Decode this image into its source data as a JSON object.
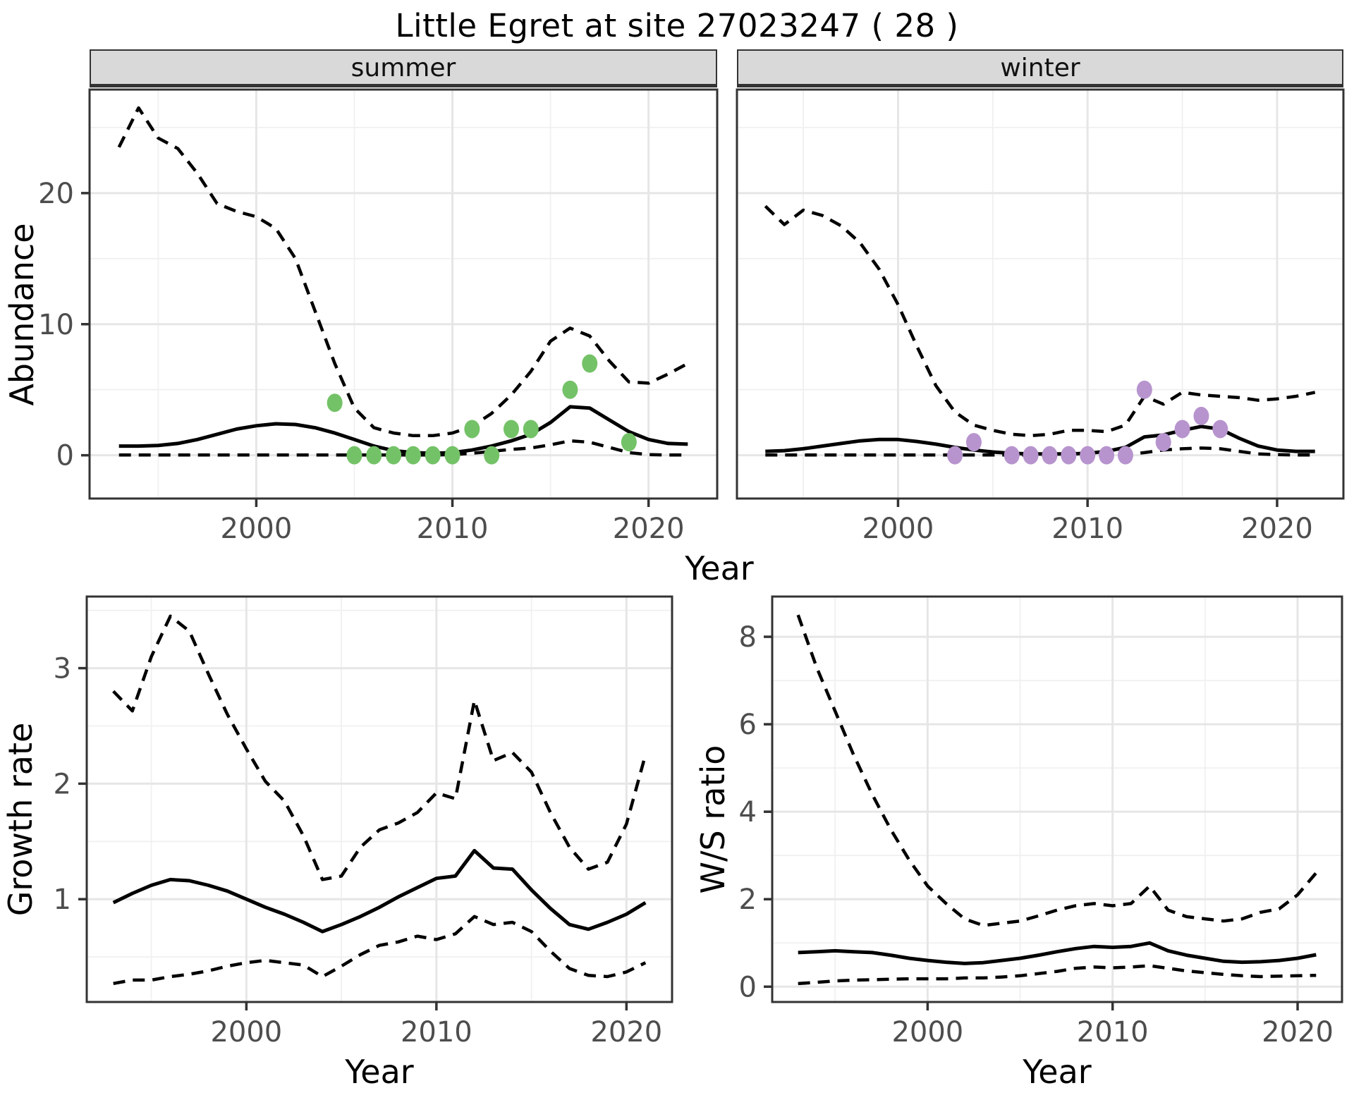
{
  "title": "Little Egret at site 27023247 ( 28 )",
  "axis_labels": {
    "x": "Year",
    "y_abundance": "Abundance",
    "y_growth": "Growth rate",
    "y_ws": "W/S ratio"
  },
  "facet_labels": {
    "summer": "summer",
    "winter": "winter"
  },
  "colors": {
    "summer_points": "#74c267",
    "winter_points": "#b794ce",
    "line": "#000000",
    "grid_major": "#e6e6e6",
    "grid_minor": "#f0f0f0",
    "panel_border": "#333333",
    "tick_mark": "#333333",
    "axis_text": "#4d4d4d",
    "strip_bg": "#d9d9d9"
  },
  "chart_data": [
    {
      "id": "summer-abundance",
      "type": "line",
      "facet_label": "summer",
      "xlabel": "Year",
      "ylabel": "Abundance",
      "x_years": [
        1993,
        1994,
        1995,
        1996,
        1997,
        1998,
        1999,
        2000,
        2001,
        2002,
        2003,
        2004,
        2005,
        2006,
        2007,
        2008,
        2009,
        2010,
        2011,
        2012,
        2013,
        2014,
        2015,
        2016,
        2017,
        2018,
        2019,
        2020,
        2021,
        2022
      ],
      "xlim": [
        1991.5,
        2023.5
      ],
      "ylim": [
        -3.3,
        27.9
      ],
      "xticks": [
        2000,
        2010,
        2020
      ],
      "xminor_gridlines": [
        1995,
        2005,
        2015
      ],
      "yticks": [
        0,
        10,
        20
      ],
      "yminor_gridlines": [
        5,
        15,
        25
      ],
      "series": [
        {
          "name": "upper-95ci",
          "style": "dashed",
          "values": [
            23.5,
            26.5,
            24.2,
            23.4,
            21.5,
            19.2,
            18.6,
            18.2,
            17.3,
            15.0,
            11.0,
            7.0,
            3.6,
            2.1,
            1.7,
            1.5,
            1.5,
            1.7,
            2.2,
            3.2,
            4.6,
            6.4,
            8.7,
            9.7,
            9.1,
            7.2,
            5.6,
            5.5,
            6.2,
            7.0
          ]
        },
        {
          "name": "median",
          "style": "solid",
          "values": [
            0.7,
            0.7,
            0.75,
            0.9,
            1.2,
            1.6,
            2.0,
            2.25,
            2.4,
            2.35,
            2.1,
            1.7,
            1.2,
            0.7,
            0.35,
            0.2,
            0.15,
            0.2,
            0.4,
            0.7,
            1.1,
            1.6,
            2.5,
            3.7,
            3.6,
            2.7,
            1.8,
            1.2,
            0.9,
            0.85
          ]
        },
        {
          "name": "lower-95ci",
          "style": "dashed",
          "values": [
            0.02,
            0.02,
            0.02,
            0.02,
            0.02,
            0.02,
            0.02,
            0.02,
            0.02,
            0.02,
            0.02,
            0.02,
            0.02,
            0.02,
            0.02,
            0.02,
            0.02,
            0.05,
            0.15,
            0.3,
            0.45,
            0.55,
            0.8,
            1.1,
            1.0,
            0.6,
            0.2,
            0.05,
            0.02,
            0.02
          ]
        }
      ],
      "observed_points": {
        "color": "#74c267",
        "data": [
          [
            2004,
            4
          ],
          [
            2005,
            0
          ],
          [
            2006,
            0
          ],
          [
            2007,
            0
          ],
          [
            2008,
            0
          ],
          [
            2009,
            0
          ],
          [
            2010,
            0
          ],
          [
            2011,
            2
          ],
          [
            2012,
            0
          ],
          [
            2013,
            2
          ],
          [
            2014,
            2
          ],
          [
            2016,
            5
          ],
          [
            2017,
            7
          ],
          [
            2019,
            1
          ]
        ]
      }
    },
    {
      "id": "winter-abundance",
      "type": "line",
      "facet_label": "winter",
      "xlabel": "Year",
      "ylabel": "Abundance",
      "x_years": [
        1993,
        1994,
        1995,
        1996,
        1997,
        1998,
        1999,
        2000,
        2001,
        2002,
        2003,
        2004,
        2005,
        2006,
        2007,
        2008,
        2009,
        2010,
        2011,
        2012,
        2013,
        2014,
        2015,
        2016,
        2017,
        2018,
        2019,
        2020,
        2021,
        2022
      ],
      "xlim": [
        1991.5,
        2023.5
      ],
      "ylim": [
        -3.3,
        27.9
      ],
      "xticks": [
        2000,
        2010,
        2020
      ],
      "xminor_gridlines": [
        1995,
        2005,
        2015
      ],
      "yticks": [
        0,
        10,
        20
      ],
      "yminor_gridlines": [
        5,
        15,
        25
      ],
      "series": [
        {
          "name": "upper-95ci",
          "style": "dashed",
          "values": [
            19.0,
            17.6,
            18.7,
            18.3,
            17.5,
            16.2,
            14.2,
            11.5,
            8.3,
            5.3,
            3.3,
            2.3,
            1.9,
            1.6,
            1.5,
            1.6,
            1.9,
            1.9,
            1.8,
            2.3,
            4.5,
            3.9,
            4.8,
            4.6,
            4.5,
            4.4,
            4.2,
            4.3,
            4.5,
            4.8
          ]
        },
        {
          "name": "median",
          "style": "solid",
          "values": [
            0.3,
            0.35,
            0.5,
            0.7,
            0.9,
            1.1,
            1.2,
            1.2,
            1.05,
            0.85,
            0.6,
            0.4,
            0.25,
            0.15,
            0.1,
            0.1,
            0.1,
            0.15,
            0.3,
            0.6,
            1.4,
            1.55,
            1.9,
            2.2,
            2.0,
            1.3,
            0.7,
            0.4,
            0.3,
            0.3
          ]
        },
        {
          "name": "lower-95ci",
          "style": "dashed",
          "values": [
            0.02,
            0.02,
            0.02,
            0.02,
            0.02,
            0.02,
            0.02,
            0.02,
            0.02,
            0.02,
            0.02,
            0.02,
            0.02,
            0.02,
            0.02,
            0.02,
            0.02,
            0.02,
            0.02,
            0.05,
            0.2,
            0.4,
            0.5,
            0.55,
            0.5,
            0.3,
            0.1,
            0.05,
            0.02,
            0.02
          ]
        }
      ],
      "observed_points": {
        "color": "#b794ce",
        "data": [
          [
            2003,
            0
          ],
          [
            2004,
            1
          ],
          [
            2006,
            0
          ],
          [
            2007,
            0
          ],
          [
            2008,
            0
          ],
          [
            2009,
            0
          ],
          [
            2010,
            0
          ],
          [
            2011,
            0
          ],
          [
            2012,
            0
          ],
          [
            2013,
            5
          ],
          [
            2014,
            1
          ],
          [
            2015,
            2
          ],
          [
            2016,
            3
          ],
          [
            2017,
            2
          ]
        ]
      }
    },
    {
      "id": "growth-rate",
      "type": "line",
      "xlabel": "Year",
      "ylabel": "Growth rate",
      "x_years": [
        1993,
        1994,
        1995,
        1996,
        1997,
        1998,
        1999,
        2000,
        2001,
        2002,
        2003,
        2004,
        2005,
        2006,
        2007,
        2008,
        2009,
        2010,
        2011,
        2012,
        2013,
        2014,
        2015,
        2016,
        2017,
        2018,
        2019,
        2020,
        2021
      ],
      "xlim": [
        1991.6,
        2022.4
      ],
      "ylim": [
        0.11,
        3.62
      ],
      "xticks": [
        2000,
        2010,
        2020
      ],
      "xminor_gridlines": [
        1995,
        2005,
        2015
      ],
      "yticks": [
        1,
        2,
        3
      ],
      "yminor_gridlines": [
        0.5,
        1.5,
        2.5,
        3.5
      ],
      "series": [
        {
          "name": "upper-95ci",
          "style": "dashed",
          "values": [
            2.8,
            2.63,
            3.1,
            3.45,
            3.32,
            2.95,
            2.6,
            2.3,
            2.02,
            1.85,
            1.55,
            1.17,
            1.2,
            1.45,
            1.6,
            1.66,
            1.75,
            1.92,
            1.87,
            2.72,
            2.2,
            2.27,
            2.1,
            1.75,
            1.45,
            1.26,
            1.32,
            1.65,
            2.25
          ]
        },
        {
          "name": "median",
          "style": "solid",
          "values": [
            0.97,
            1.05,
            1.12,
            1.17,
            1.16,
            1.12,
            1.07,
            1.0,
            0.93,
            0.87,
            0.8,
            0.72,
            0.78,
            0.85,
            0.93,
            1.02,
            1.1,
            1.18,
            1.2,
            1.42,
            1.27,
            1.26,
            1.08,
            0.92,
            0.78,
            0.74,
            0.8,
            0.87,
            0.97
          ]
        },
        {
          "name": "lower-95ci",
          "style": "dashed",
          "values": [
            0.27,
            0.3,
            0.3,
            0.33,
            0.35,
            0.38,
            0.42,
            0.45,
            0.47,
            0.45,
            0.43,
            0.33,
            0.42,
            0.52,
            0.6,
            0.63,
            0.68,
            0.65,
            0.7,
            0.85,
            0.78,
            0.8,
            0.72,
            0.55,
            0.4,
            0.34,
            0.33,
            0.37,
            0.45
          ]
        }
      ]
    },
    {
      "id": "ws-ratio",
      "type": "line",
      "xlabel": "Year",
      "ylabel": "W/S ratio",
      "x_years": [
        1993,
        1994,
        1995,
        1996,
        1997,
        1998,
        1999,
        2000,
        2001,
        2002,
        2003,
        2004,
        2005,
        2006,
        2007,
        2008,
        2009,
        2010,
        2011,
        2012,
        2013,
        2014,
        2015,
        2016,
        2017,
        2018,
        2019,
        2020,
        2021
      ],
      "xlim": [
        1991.6,
        2022.4
      ],
      "ylim": [
        -0.35,
        8.92
      ],
      "xticks": [
        2000,
        2010,
        2020
      ],
      "xminor_gridlines": [
        1995,
        2005,
        2015
      ],
      "yticks": [
        0,
        2,
        4,
        6,
        8
      ],
      "yminor_gridlines": [
        1,
        3,
        5,
        7
      ],
      "series": [
        {
          "name": "upper-95ci",
          "style": "dashed",
          "values": [
            8.5,
            7.3,
            6.3,
            5.3,
            4.4,
            3.6,
            2.9,
            2.3,
            1.9,
            1.55,
            1.4,
            1.45,
            1.5,
            1.62,
            1.75,
            1.85,
            1.9,
            1.85,
            1.9,
            2.3,
            1.75,
            1.6,
            1.55,
            1.5,
            1.55,
            1.7,
            1.78,
            2.1,
            2.6
          ]
        },
        {
          "name": "median",
          "style": "solid",
          "values": [
            0.78,
            0.8,
            0.82,
            0.8,
            0.78,
            0.72,
            0.65,
            0.6,
            0.56,
            0.53,
            0.55,
            0.6,
            0.65,
            0.72,
            0.8,
            0.87,
            0.92,
            0.9,
            0.92,
            1.0,
            0.82,
            0.72,
            0.65,
            0.58,
            0.56,
            0.57,
            0.6,
            0.65,
            0.73
          ]
        },
        {
          "name": "lower-95ci",
          "style": "dashed",
          "values": [
            0.07,
            0.1,
            0.13,
            0.15,
            0.16,
            0.17,
            0.18,
            0.18,
            0.18,
            0.2,
            0.2,
            0.22,
            0.25,
            0.3,
            0.35,
            0.42,
            0.45,
            0.43,
            0.45,
            0.48,
            0.42,
            0.36,
            0.32,
            0.28,
            0.25,
            0.23,
            0.24,
            0.25,
            0.26
          ]
        }
      ]
    }
  ]
}
